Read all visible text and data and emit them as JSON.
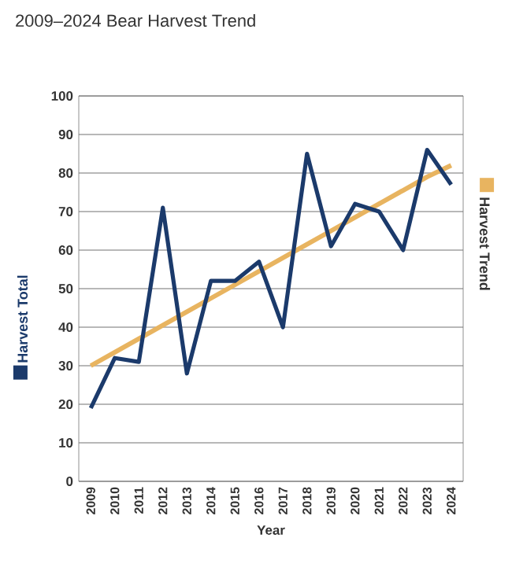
{
  "chart_data": {
    "type": "line",
    "title": "2009–2024 Bear Harvest Trend",
    "xlabel": "Year",
    "categories": [
      "2009",
      "2010",
      "2011",
      "2012",
      "2013",
      "2014",
      "2015",
      "2016",
      "2017",
      "2018",
      "2019",
      "2020",
      "2021",
      "2022",
      "2023",
      "2024"
    ],
    "series": [
      {
        "name": "Harvest Total",
        "color": "#1b3a6b",
        "values": [
          19,
          32,
          31,
          71,
          28,
          52,
          52,
          57,
          40,
          85,
          61,
          72,
          70,
          60,
          86,
          77
        ]
      },
      {
        "name": "Harvest Trend",
        "color": "#e8b460",
        "values": [
          30,
          33.5,
          37,
          40.5,
          44,
          47.5,
          51,
          54.5,
          58,
          61.5,
          65,
          68.5,
          72,
          75.5,
          79,
          82
        ]
      }
    ],
    "ylim": [
      0,
      100
    ],
    "yticks": [
      0,
      10,
      20,
      30,
      40,
      50,
      60,
      70,
      80,
      90,
      100
    ],
    "grid": "y",
    "legend": "right",
    "marker": "none",
    "line_style": "solid"
  }
}
